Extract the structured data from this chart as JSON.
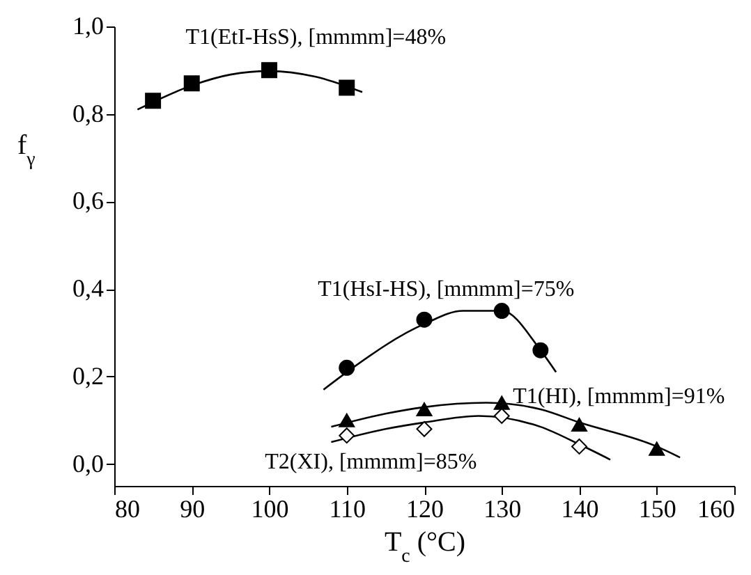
{
  "chart_data": {
    "type": "scatter",
    "xlabel": "T$_{c}$ (°C)",
    "ylabel": "f$_{γ}$",
    "xlim": [
      80,
      160
    ],
    "ylim": [
      -0.05,
      1.0
    ],
    "xticks": [
      80,
      90,
      100,
      110,
      120,
      130,
      140,
      150,
      160
    ],
    "yticks": [
      {
        "value": 0,
        "label": "0,0"
      },
      {
        "value": 0.2,
        "label": "0,2"
      },
      {
        "value": 0.4,
        "label": "0,4"
      },
      {
        "value": 0.6,
        "label": "0,6"
      },
      {
        "value": 0.8,
        "label": "0,8"
      },
      {
        "value": 1.0,
        "label": "1,0"
      }
    ],
    "grid": false,
    "series": [
      {
        "type": "scatter",
        "name": "T1(EtI-HsS), [mmmm]=48%",
        "marker": "square",
        "color": "#000000",
        "x": [
          85,
          90,
          100,
          110
        ],
        "values": [
          0.83,
          0.87,
          0.9,
          0.86
        ]
      },
      {
        "type": "scatter",
        "name": "T1(HsI-HS), [mmmm]=75%",
        "marker": "circle",
        "color": "#000000",
        "x": [
          110,
          120,
          130,
          135
        ],
        "values": [
          0.22,
          0.33,
          0.35,
          0.26
        ]
      },
      {
        "type": "scatter",
        "name": "T1(HI), [mmmm]=91%",
        "marker": "triangle",
        "color": "#000000",
        "x": [
          110,
          120,
          130,
          140,
          150
        ],
        "values": [
          0.1,
          0.125,
          0.14,
          0.09,
          0.035
        ]
      },
      {
        "type": "scatter",
        "name": "T2(XI), [mmmm]=85%",
        "marker": "diamond",
        "color": "#ffffff",
        "x": [
          110,
          120,
          130,
          140
        ],
        "values": [
          0.065,
          0.08,
          0.11,
          0.04
        ]
      },
      {
        "type": "line",
        "line_style": "solid",
        "color": "#000000",
        "x": [
          83,
          90,
          95,
          100,
          106,
          112
        ],
        "values": [
          0.81,
          0.865,
          0.89,
          0.898,
          0.885,
          0.85
        ]
      },
      {
        "type": "line",
        "line_style": "solid",
        "color": "#000000",
        "x": [
          107,
          110,
          120,
          125,
          130,
          135,
          137
        ],
        "values": [
          0.17,
          0.21,
          0.32,
          0.35,
          0.35,
          0.26,
          0.21
        ]
      },
      {
        "type": "line",
        "line_style": "solid",
        "color": "#000000",
        "x": [
          108,
          115,
          120,
          128,
          135,
          140,
          150,
          153
        ],
        "values": [
          0.085,
          0.115,
          0.13,
          0.14,
          0.125,
          0.095,
          0.04,
          0.015
        ]
      },
      {
        "type": "line",
        "line_style": "solid",
        "color": "#000000",
        "x": [
          108,
          115,
          120,
          127,
          135,
          140,
          144
        ],
        "values": [
          0.05,
          0.08,
          0.095,
          0.11,
          0.085,
          0.045,
          0.01
        ]
      }
    ]
  }
}
